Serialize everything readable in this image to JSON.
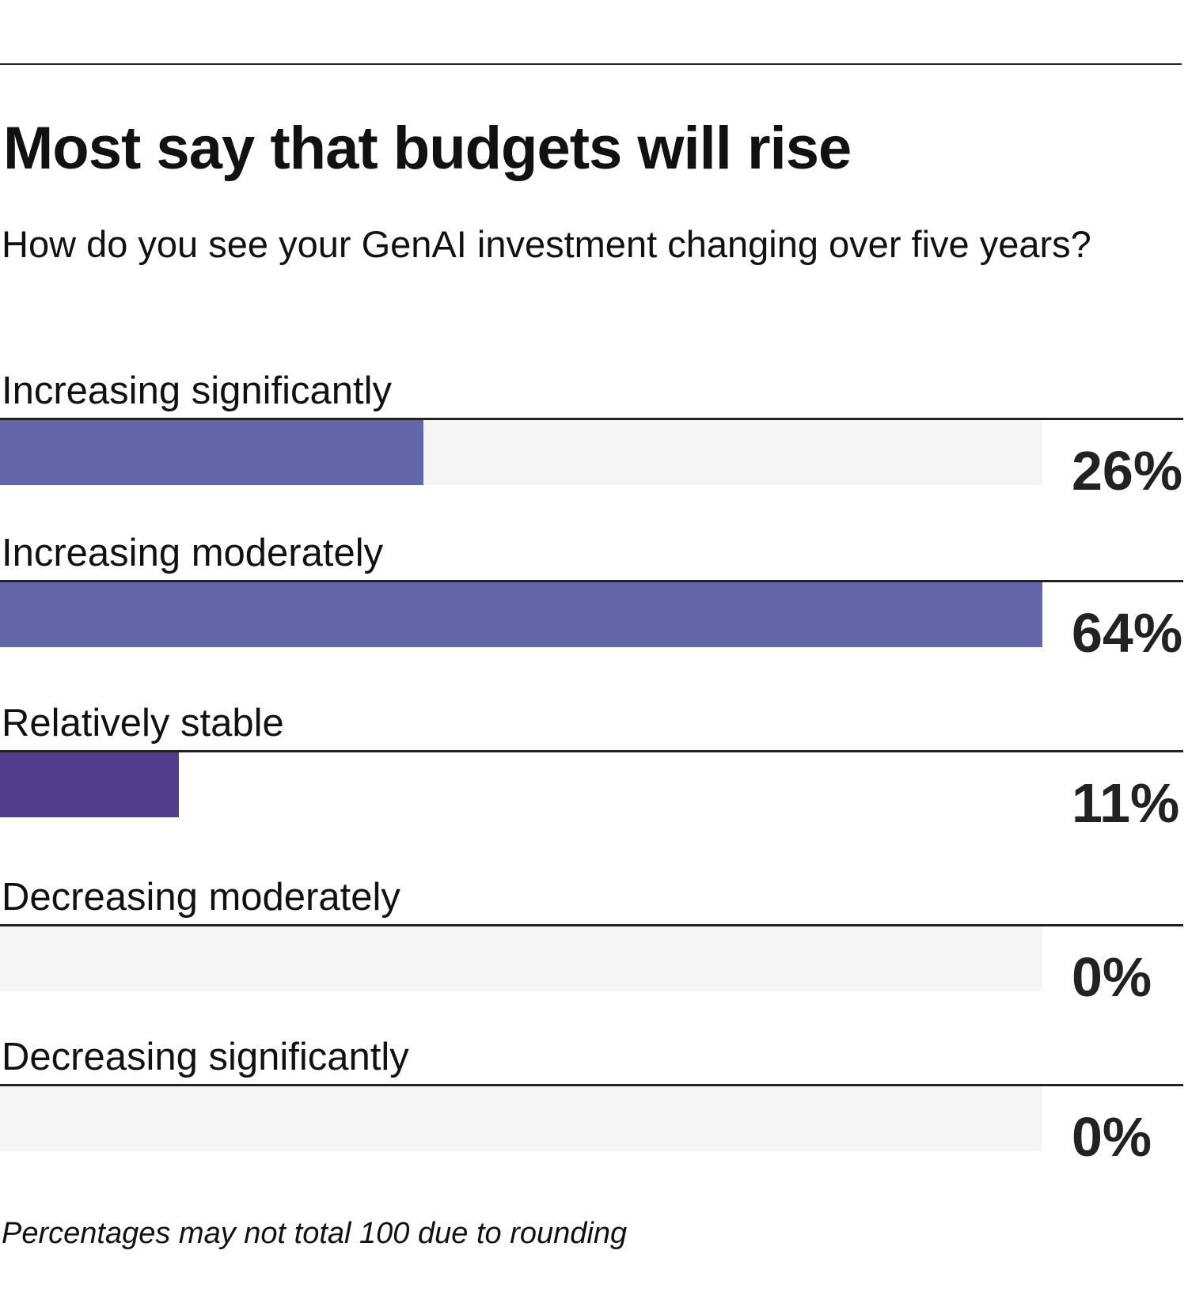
{
  "header": {
    "title": "Most say that budgets will rise",
    "subtitle": "How do you see your GenAI investment changing over five years?"
  },
  "footnote": "Percentages may not total 100 due to rounding",
  "colors": {
    "bar_primary": "#6267aa",
    "bar_highlight": "#523d8d",
    "track": "#f5f5f5",
    "rule": "#222222"
  },
  "chart_data": {
    "type": "bar",
    "orientation": "horizontal",
    "title": "Most say that budgets will rise",
    "subtitle": "How do you see your GenAI investment changing over five years?",
    "categories": [
      "Increasing significantly",
      "Increasing moderately",
      "Relatively stable",
      "Decreasing moderately",
      "Decreasing significantly"
    ],
    "values": [
      26,
      64,
      11,
      0,
      0
    ],
    "value_labels": [
      "26%",
      "64%",
      "11%",
      "0%",
      "0%"
    ],
    "xlim": [
      0,
      64
    ],
    "unit": "%",
    "grid": false,
    "legend": "none"
  }
}
